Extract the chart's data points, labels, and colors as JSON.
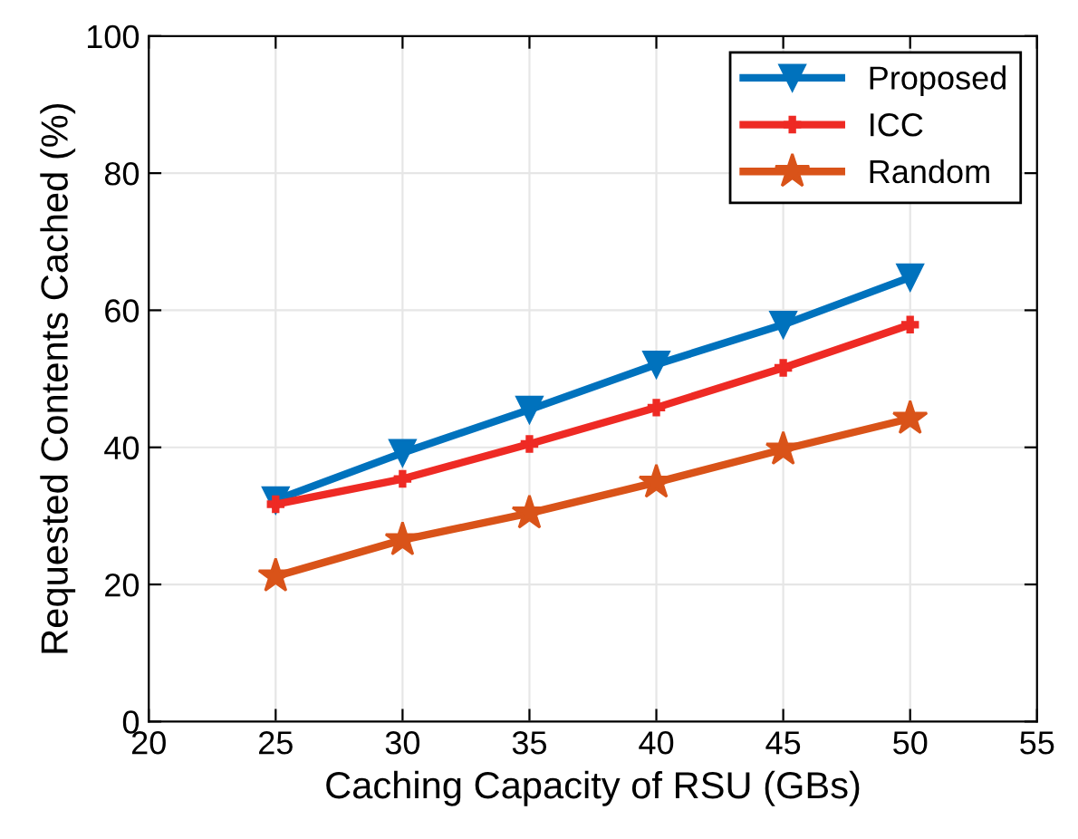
{
  "chart_data": {
    "type": "line",
    "xlabel": "Caching Capacity of RSU (GBs)",
    "ylabel": "Requested Contents Cached (%)",
    "x": [
      25,
      30,
      35,
      40,
      45,
      50
    ],
    "series": [
      {
        "name": "Proposed",
        "color": "#0072bd",
        "marker": "triangle",
        "values": [
          32.3,
          39.2,
          45.5,
          52.1,
          57.9,
          64.8
        ]
      },
      {
        "name": "ICC",
        "color": "#ee2a24",
        "marker": "cross",
        "values": [
          31.7,
          35.4,
          40.5,
          45.8,
          51.6,
          57.9
        ]
      },
      {
        "name": "Random",
        "color": "#d95319",
        "marker": "star",
        "values": [
          21.2,
          26.5,
          30.4,
          34.9,
          39.7,
          44.2
        ]
      }
    ],
    "xlim": [
      20,
      55
    ],
    "xticks": [
      20,
      25,
      30,
      35,
      40,
      45,
      50,
      55
    ],
    "ylim": [
      0,
      100
    ],
    "yticks": [
      0,
      20,
      40,
      60,
      80,
      100
    ],
    "grid": true,
    "legend": "top right",
    "line_style": "solid"
  }
}
